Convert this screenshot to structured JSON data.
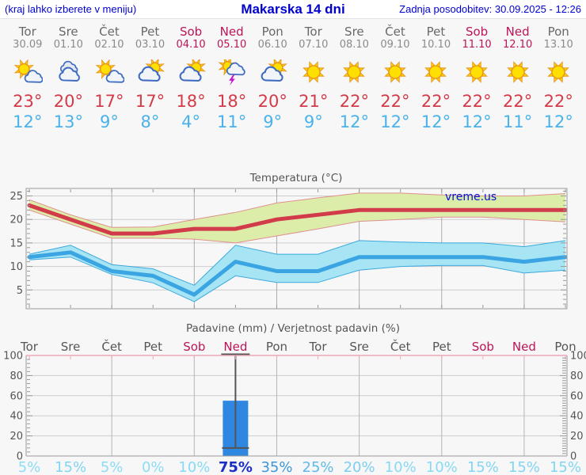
{
  "header": {
    "left_note": "(kraj lahko izberete v meniju)",
    "title": "Makarska 14 dni",
    "updated": "Zadnja posodobitev: 30.09.2025 - 12:26"
  },
  "watermark": "vreme.us",
  "colors": {
    "link_blue": "#0000cd",
    "weekend_red": "#bc1458",
    "tmax_red": "#d43a48",
    "tmin_blue": "#4ab2ea",
    "bar_blue": "#2f87e2",
    "max_line": "#d23b49",
    "max_band": "#dcedaa",
    "max_band_edge": "#e08f8f",
    "min_line": "#3aa5e2",
    "min_band": "#a8e5f4",
    "min_band_edge": "#3da8dd",
    "prob_high_blue": "#1b2fc7"
  },
  "days": [
    {
      "name": "Tor",
      "date": "30.09",
      "weekend": false,
      "icon": "sun-small-cloud",
      "tmax": "23°",
      "tmin": "12°",
      "prob": "5%",
      "prob_color": "#8bdcf4",
      "prob_bold": false
    },
    {
      "name": "Sre",
      "date": "01.10",
      "weekend": false,
      "icon": "clouds",
      "tmax": "20°",
      "tmin": "13°",
      "prob": "15%",
      "prob_color": "#80d6f2",
      "prob_bold": false
    },
    {
      "name": "Čet",
      "date": "02.10",
      "weekend": false,
      "icon": "sun-small-cloud",
      "tmax": "17°",
      "tmin": "9°",
      "prob": "5%",
      "prob_color": "#8bdcf4",
      "prob_bold": false
    },
    {
      "name": "Pet",
      "date": "03.10",
      "weekend": false,
      "icon": "cloud-sun",
      "tmax": "17°",
      "tmin": "8°",
      "prob": "0%",
      "prob_color": "#8bdcf4",
      "prob_bold": false
    },
    {
      "name": "Sob",
      "date": "04.10",
      "weekend": true,
      "icon": "cloud-sun",
      "tmax": "18°",
      "tmin": "4°",
      "prob": "10%",
      "prob_color": "#86daf3",
      "prob_bold": false
    },
    {
      "name": "Ned",
      "date": "05.10",
      "weekend": true,
      "icon": "thunderstorm",
      "tmax": "18°",
      "tmin": "11°",
      "prob": "75%",
      "prob_color": "#1b2fc7",
      "prob_bold": true
    },
    {
      "name": "Pon",
      "date": "06.10",
      "weekend": false,
      "icon": "cloud-sun",
      "tmax": "20°",
      "tmin": "9°",
      "prob": "35%",
      "prob_color": "#3c96dc",
      "prob_bold": false
    },
    {
      "name": "Tor",
      "date": "07.10",
      "weekend": false,
      "icon": "sun",
      "tmax": "21°",
      "tmin": "9°",
      "prob": "25%",
      "prob_color": "#5fb9e9",
      "prob_bold": false
    },
    {
      "name": "Sre",
      "date": "08.10",
      "weekend": false,
      "icon": "sun",
      "tmax": "22°",
      "tmin": "12°",
      "prob": "20%",
      "prob_color": "#7ccfef",
      "prob_bold": false
    },
    {
      "name": "Čet",
      "date": "09.10",
      "weekend": false,
      "icon": "sun",
      "tmax": "22°",
      "tmin": "12°",
      "prob": "10%",
      "prob_color": "#86daf3",
      "prob_bold": false
    },
    {
      "name": "Pet",
      "date": "10.10",
      "weekend": false,
      "icon": "sun",
      "tmax": "22°",
      "tmin": "12°",
      "prob": "10%",
      "prob_color": "#86daf3",
      "prob_bold": false
    },
    {
      "name": "Sob",
      "date": "11.10",
      "weekend": true,
      "icon": "sun",
      "tmax": "22°",
      "tmin": "12°",
      "prob": "15%",
      "prob_color": "#80d6f2",
      "prob_bold": false
    },
    {
      "name": "Ned",
      "date": "12.10",
      "weekend": true,
      "icon": "sun",
      "tmax": "22°",
      "tmin": "11°",
      "prob": "15%",
      "prob_color": "#80d6f2",
      "prob_bold": false
    },
    {
      "name": "Pon",
      "date": "13.10",
      "weekend": false,
      "icon": "sun",
      "tmax": "22°",
      "tmin": "12°",
      "prob": "15%",
      "prob_color": "#80d6f2",
      "prob_bold": false
    }
  ],
  "chart_data": [
    {
      "type": "line",
      "title": "Temperatura (°C)",
      "categories": [
        "Tor",
        "Sre",
        "Čet",
        "Pet",
        "Sob",
        "Ned",
        "Pon",
        "Tor",
        "Sre",
        "Čet",
        "Pet",
        "Sob",
        "Ned",
        "Pon"
      ],
      "series": [
        {
          "name": "max temperature",
          "color": "#d23b49",
          "values": [
            23,
            20,
            17,
            17,
            18,
            18,
            20,
            21,
            22,
            22,
            22,
            22,
            22,
            22
          ]
        },
        {
          "name": "max range upper",
          "values": [
            24.2,
            21,
            18.3,
            18.4,
            20,
            21.5,
            23.5,
            24.6,
            25.6,
            25.6,
            25.2,
            25,
            25,
            25.5
          ]
        },
        {
          "name": "max range lower",
          "values": [
            22,
            19,
            16,
            16,
            15.8,
            15,
            16.5,
            18,
            19.6,
            20,
            20.5,
            20.5,
            20,
            19.5
          ]
        },
        {
          "name": "min temperature",
          "color": "#3aa5e2",
          "values": [
            12,
            13,
            9,
            8,
            4,
            11,
            9,
            9,
            12,
            12,
            12,
            12,
            11,
            12
          ]
        },
        {
          "name": "min range upper",
          "values": [
            12.6,
            14.5,
            10.4,
            9.5,
            6,
            14.5,
            12.6,
            12.6,
            15.5,
            15.2,
            15,
            15,
            14.2,
            15.5
          ]
        },
        {
          "name": "min range lower",
          "values": [
            11.4,
            12,
            8.3,
            6.5,
            2.5,
            8,
            6.6,
            6.6,
            9.2,
            10,
            10.2,
            10.2,
            8.6,
            9.2
          ]
        }
      ],
      "yticks": [
        5,
        10,
        15,
        20,
        25
      ],
      "ylim": [
        1,
        26.6
      ],
      "grid": true,
      "legend": "none"
    },
    {
      "type": "bar",
      "title": "Padavine (mm) / Verjetnost padavin (%)",
      "categories": [
        "Tor",
        "Sre",
        "Čet",
        "Pet",
        "Sob",
        "Ned",
        "Pon",
        "Tor",
        "Sre",
        "Čet",
        "Pet",
        "Sob",
        "Ned",
        "Pon"
      ],
      "values_mm": [
        0,
        0,
        0,
        0,
        0,
        55,
        0,
        0,
        0,
        0,
        0,
        0,
        0,
        0
      ],
      "whisker": {
        "category_index": 5,
        "low": 8,
        "high": 101
      },
      "probability_pct": [
        5,
        15,
        5,
        0,
        10,
        75,
        35,
        25,
        20,
        10,
        10,
        15,
        15,
        15
      ],
      "yticks": [
        0,
        20,
        40,
        60,
        80,
        100
      ],
      "ylim": [
        0,
        100
      ],
      "grid": true
    }
  ]
}
